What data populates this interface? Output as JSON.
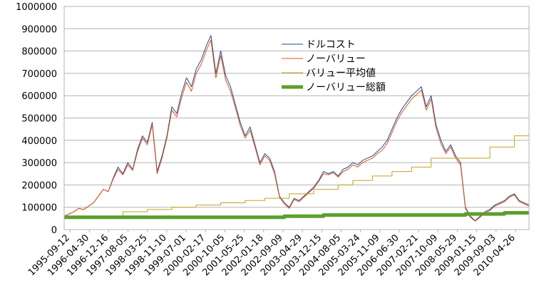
{
  "chart_data": {
    "type": "line",
    "title": "",
    "xlabel": "",
    "ylabel": "",
    "ylim": [
      0,
      1000000
    ],
    "yticks": [
      "0",
      "100000",
      "200000",
      "300000",
      "400000",
      "500000",
      "600000",
      "700000",
      "800000",
      "900000",
      "1000000"
    ],
    "xticks": [
      "1995-09-12",
      "1996-04-30",
      "1996-12-16",
      "1997-08-05",
      "1998-03-25",
      "1998-11-10",
      "1999-07-01",
      "2000-02-17",
      "2000-10-05",
      "2001-05-25",
      "2002-01-18",
      "2002-09-09",
      "2003-04-29",
      "2003-12-15",
      "2004-08-05",
      "2005-03-24",
      "2005-11-09",
      "2006-06-30",
      "2007-02-21",
      "2007-10-09",
      "2008-05-29",
      "2009-01-15",
      "2009-09-03",
      "2010-04-26"
    ],
    "grid": "horizontal",
    "legend_position": "top-center",
    "series": [
      {
        "name": "ドルコスト",
        "color": "#1f4e8c",
        "width": 1,
        "values": [
          60000,
          70000,
          80000,
          95000,
          90000,
          105000,
          120000,
          150000,
          180000,
          170000,
          230000,
          280000,
          250000,
          300000,
          270000,
          360000,
          420000,
          390000,
          480000,
          260000,
          330000,
          420000,
          550000,
          520000,
          610000,
          680000,
          640000,
          720000,
          760000,
          820000,
          870000,
          700000,
          800000,
          690000,
          640000,
          560000,
          480000,
          420000,
          460000,
          380000,
          300000,
          340000,
          320000,
          260000,
          150000,
          120000,
          100000,
          140000,
          130000,
          150000,
          170000,
          190000,
          220000,
          260000,
          250000,
          260000,
          240000,
          270000,
          280000,
          300000,
          290000,
          310000,
          320000,
          330000,
          350000,
          370000,
          400000,
          450000,
          500000,
          540000,
          570000,
          600000,
          620000,
          640000,
          550000,
          600000,
          470000,
          400000,
          350000,
          380000,
          330000,
          300000,
          100000,
          60000,
          40000,
          60000,
          80000,
          90000,
          110000,
          120000,
          130000,
          150000,
          160000,
          130000,
          120000,
          110000
        ]
      },
      {
        "name": "ノーバリュー",
        "color": "#e8501c",
        "width": 1,
        "values": [
          60000,
          70000,
          80000,
          95000,
          90000,
          105000,
          120000,
          150000,
          180000,
          170000,
          225000,
          270000,
          245000,
          290000,
          265000,
          350000,
          410000,
          380000,
          470000,
          250000,
          320000,
          410000,
          535000,
          505000,
          590000,
          660000,
          620000,
          700000,
          740000,
          800000,
          850000,
          680000,
          780000,
          670000,
          620000,
          545000,
          465000,
          410000,
          445000,
          370000,
          290000,
          330000,
          310000,
          250000,
          145000,
          115000,
          95000,
          135000,
          125000,
          145000,
          165000,
          185000,
          215000,
          250000,
          245000,
          255000,
          235000,
          260000,
          270000,
          290000,
          280000,
          300000,
          310000,
          320000,
          340000,
          355000,
          385000,
          435000,
          485000,
          525000,
          555000,
          585000,
          605000,
          625000,
          535000,
          585000,
          455000,
          385000,
          340000,
          370000,
          320000,
          290000,
          95000,
          55000,
          38000,
          55000,
          75000,
          85000,
          105000,
          115000,
          125000,
          145000,
          155000,
          125000,
          115000,
          105000
        ]
      },
      {
        "name": "バリュー平均値",
        "color": "#c8a020",
        "width": 1,
        "step": true,
        "values": [
          60000,
          60000,
          60000,
          60000,
          60000,
          60000,
          60000,
          60000,
          60000,
          60000,
          60000,
          60000,
          80000,
          80000,
          80000,
          80000,
          80000,
          90000,
          90000,
          90000,
          90000,
          90000,
          100000,
          100000,
          100000,
          100000,
          100000,
          110000,
          110000,
          110000,
          110000,
          110000,
          120000,
          120000,
          120000,
          120000,
          120000,
          130000,
          130000,
          130000,
          130000,
          140000,
          140000,
          140000,
          140000,
          140000,
          160000,
          160000,
          160000,
          160000,
          160000,
          180000,
          180000,
          180000,
          180000,
          180000,
          200000,
          200000,
          200000,
          220000,
          220000,
          220000,
          220000,
          240000,
          240000,
          240000,
          240000,
          260000,
          260000,
          260000,
          260000,
          280000,
          280000,
          280000,
          280000,
          320000,
          320000,
          320000,
          320000,
          320000,
          320000,
          320000,
          320000,
          320000,
          320000,
          320000,
          320000,
          370000,
          370000,
          370000,
          370000,
          370000,
          420000,
          420000,
          420000,
          420000
        ]
      },
      {
        "name": "ノーバリュー総額",
        "color": "#5aa02c",
        "width": 5,
        "step": true,
        "values": [
          55000,
          55000,
          55000,
          55000,
          55000,
          55000,
          55000,
          55000,
          55000,
          55000,
          55000,
          55000,
          55000,
          55000,
          55000,
          55000,
          55000,
          55000,
          55000,
          55000,
          55000,
          55000,
          55000,
          55000,
          55000,
          55000,
          55000,
          55000,
          55000,
          55000,
          55000,
          55000,
          55000,
          55000,
          55000,
          55000,
          55000,
          55000,
          55000,
          55000,
          55000,
          55000,
          55000,
          55000,
          55000,
          60000,
          60000,
          60000,
          60000,
          60000,
          60000,
          60000,
          60000,
          65000,
          65000,
          65000,
          65000,
          65000,
          65000,
          65000,
          65000,
          65000,
          65000,
          65000,
          65000,
          65000,
          65000,
          65000,
          65000,
          65000,
          65000,
          65000,
          65000,
          65000,
          65000,
          65000,
          65000,
          65000,
          65000,
          65000,
          65000,
          65000,
          70000,
          70000,
          70000,
          70000,
          70000,
          70000,
          70000,
          70000,
          75000,
          75000,
          75000,
          75000,
          75000,
          75000
        ]
      }
    ]
  }
}
